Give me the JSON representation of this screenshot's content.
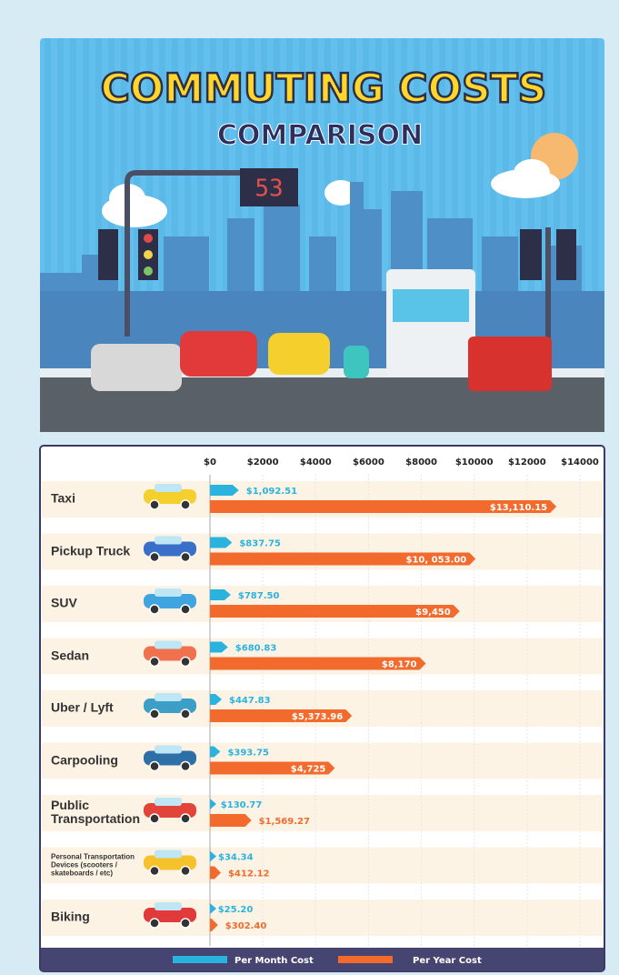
{
  "chart_data": {
    "type": "bar",
    "orientation": "horizontal",
    "title": "COMMUTING COSTS",
    "subtitle": "COMPARISON",
    "annotations": [
      "53"
    ],
    "categories": [
      "Taxi",
      "Pickup Truck",
      "SUV",
      "Sedan",
      "Uber / Lyft",
      "Carpooling",
      "Public Transportation",
      "Personal Transportation Devices (scooters / skateboards / etc)",
      "Biking"
    ],
    "series": [
      {
        "name": "Per Month Cost",
        "color": "#2bb3e0",
        "values": [
          1092.51,
          837.75,
          787.5,
          680.83,
          447.83,
          393.75,
          130.77,
          34.34,
          25.2
        ],
        "value_labels": [
          "$1,092.51",
          "$837.75",
          "$787.50",
          "$680.83",
          "$447.83",
          "$393.75",
          "$130.77",
          "$34.34",
          "$25.20"
        ]
      },
      {
        "name": "Per Year Cost",
        "color": "#f26b2d",
        "values": [
          13110.15,
          10053.0,
          9450,
          8170,
          5373.96,
          4725,
          1569.27,
          412.12,
          302.4
        ],
        "value_labels": [
          "$13,110.15",
          "$10, 053.00",
          "$9,450",
          "$8,170",
          "$5,373.96",
          "$4,725",
          "$1,569.27",
          "$412.12",
          "$302.40"
        ]
      }
    ],
    "xlim": [
      0,
      14000
    ],
    "xticks": [
      {
        "value": 0,
        "label": "$0"
      },
      {
        "value": 2000,
        "label": "$2000"
      },
      {
        "value": 4000,
        "label": "$4000"
      },
      {
        "value": 6000,
        "label": "$6000"
      },
      {
        "value": 8000,
        "label": "$8000"
      },
      {
        "value": 10000,
        "label": "$10000"
      },
      {
        "value": 12000,
        "label": "$12000"
      },
      {
        "value": 14000,
        "label": "$14000"
      }
    ],
    "grid": true,
    "legend": "bottom"
  }
}
